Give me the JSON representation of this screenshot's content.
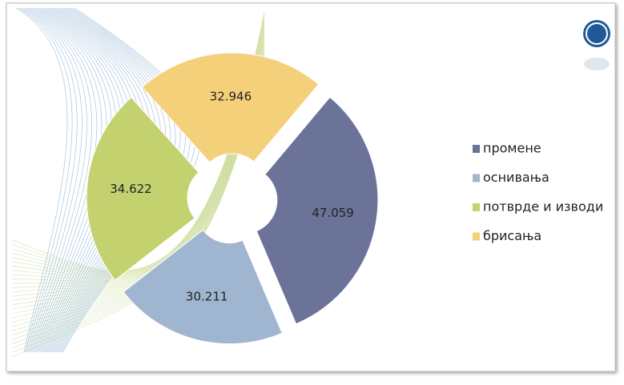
{
  "chart_data": {
    "type": "donut",
    "categories": [
      "промене",
      "оснивања",
      "потврде и изводи",
      "брисања"
    ],
    "values": [
      47059,
      30211,
      34622,
      32946
    ],
    "value_labels": [
      "47.059",
      "30.211",
      "34.622",
      "32.946"
    ],
    "colors": [
      "#6b7399",
      "#a0b5d0",
      "#c3d26e",
      "#f5d07a"
    ],
    "legend": "right"
  }
}
